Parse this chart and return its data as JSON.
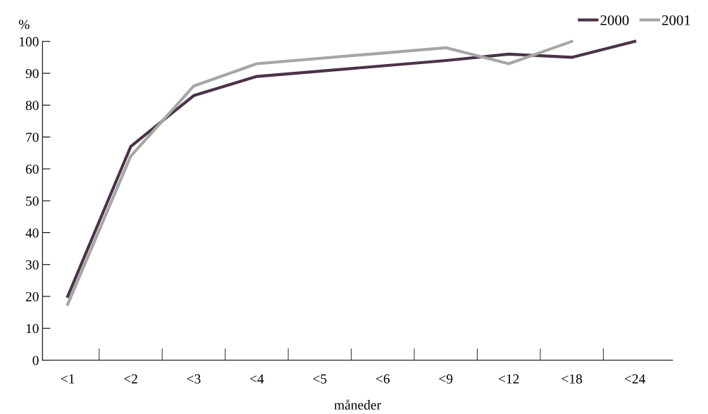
{
  "chart_data": {
    "type": "line",
    "xlabel": "måneder",
    "ylabel": "%",
    "categories": [
      "<1",
      "<2",
      "<3",
      "<4",
      "<5",
      "<6",
      "<9",
      "<12",
      "<18",
      "<24"
    ],
    "series": [
      {
        "name": "2000",
        "color": "#4a3347",
        "values": [
          20,
          67,
          83,
          89,
          null,
          null,
          94,
          96,
          95,
          100
        ]
      },
      {
        "name": "2001",
        "color": "#a6a6a7",
        "values": [
          17.5,
          64,
          86,
          93,
          null,
          null,
          98,
          93,
          100,
          null
        ]
      }
    ],
    "ylim": [
      0,
      100
    ],
    "yticks": [
      0,
      10,
      20,
      30,
      40,
      50,
      60,
      70,
      80,
      90,
      100
    ],
    "grid": false,
    "legend": "top right",
    "marker": "none",
    "line_style": "solid"
  }
}
